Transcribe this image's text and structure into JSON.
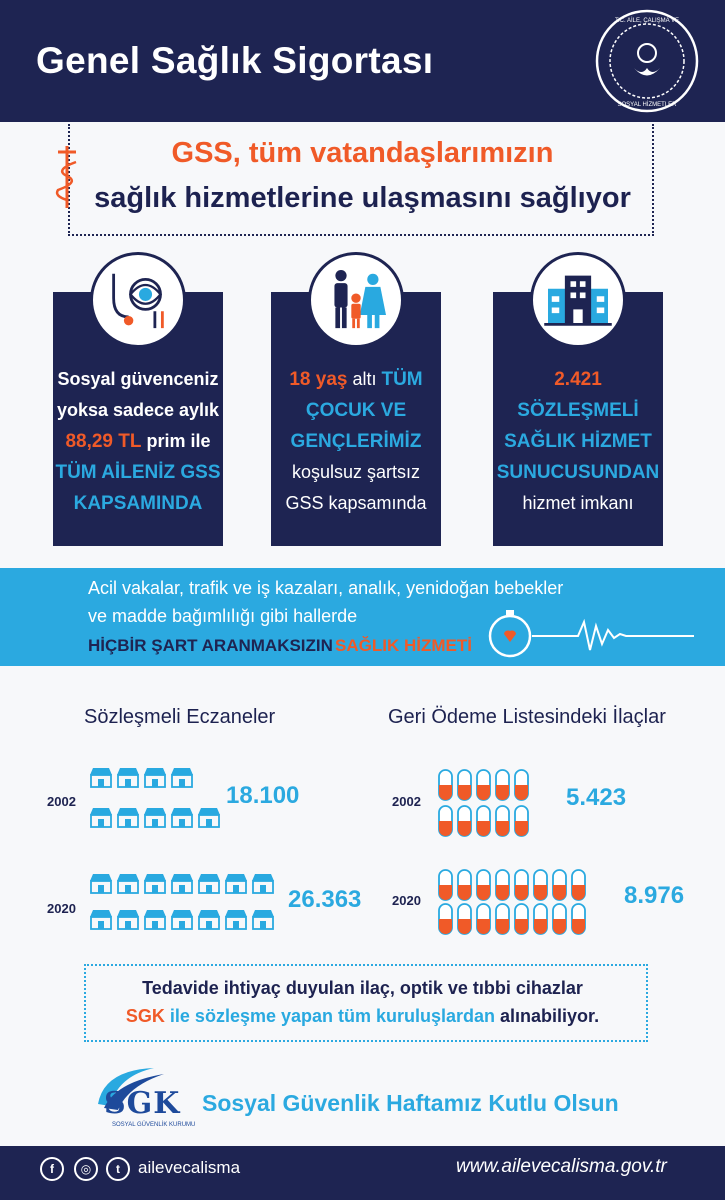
{
  "header": {
    "title": "Genel Sağlık Sigortası",
    "seal_text": "T.C. AİLE, ÇALIŞMA VE SOSYAL HİZMETLER BAKANLIĞI"
  },
  "subtitle": {
    "line1": "GSS, tüm vatandaşlarımızın",
    "line2": "sağlık hizmetlerine ulaşmasını sağlıyor"
  },
  "cards": [
    {
      "icon": "medical-tools-icon",
      "lines": [
        {
          "parts": [
            {
              "t": "Sosyal güvenceniz",
              "c": "white",
              "w": "bold"
            }
          ]
        },
        {
          "parts": [
            {
              "t": "yoksa sadece aylık",
              "c": "white",
              "w": "bold"
            }
          ]
        },
        {
          "parts": [
            {
              "t": "88,29 TL",
              "c": "orange",
              "w": "bold"
            },
            {
              "t": " prim ile",
              "c": "white",
              "w": "bold"
            }
          ]
        },
        {
          "parts": [
            {
              "t": "TÜM AİLENİZ GSS",
              "c": "blue",
              "w": "bold"
            }
          ]
        },
        {
          "parts": [
            {
              "t": "KAPSAMINDA",
              "c": "blue",
              "w": "bold"
            }
          ]
        }
      ]
    },
    {
      "icon": "family-icon",
      "lines": [
        {
          "parts": [
            {
              "t": "18 yaş",
              "c": "orange",
              "w": "bold"
            },
            {
              "t": " altı ",
              "c": "white",
              "w": "reg"
            },
            {
              "t": "TÜM",
              "c": "blue",
              "w": "bold"
            }
          ]
        },
        {
          "parts": [
            {
              "t": "ÇOCUK VE",
              "c": "blue",
              "w": "bold"
            }
          ]
        },
        {
          "parts": [
            {
              "t": "GENÇLERİMİZ",
              "c": "blue",
              "w": "bold"
            }
          ]
        },
        {
          "parts": [
            {
              "t": "koşulsuz şartsız",
              "c": "white",
              "w": "reg"
            }
          ]
        },
        {
          "parts": [
            {
              "t": "GSS kapsamında",
              "c": "white",
              "w": "reg"
            }
          ]
        }
      ]
    },
    {
      "icon": "hospital-icon",
      "lines": [
        {
          "parts": [
            {
              "t": "2.421",
              "c": "orange",
              "w": "bold"
            }
          ]
        },
        {
          "parts": [
            {
              "t": "SÖZLEŞMELİ",
              "c": "blue",
              "w": "bold"
            }
          ]
        },
        {
          "parts": [
            {
              "t": "SAĞLIK HİZMET",
              "c": "blue",
              "w": "bold"
            }
          ]
        },
        {
          "parts": [
            {
              "t": "SUNUCUSUNDAN",
              "c": "blue",
              "w": "bold"
            }
          ]
        },
        {
          "parts": [
            {
              "t": "hizmet imkanı",
              "c": "white",
              "w": "reg"
            }
          ]
        }
      ]
    }
  ],
  "banner": {
    "line1": "Acil vakalar, trafik ve iş kazaları, analık, yenidoğan bebekler",
    "line2": "ve madde bağımlılığı gibi hallerde",
    "line3_a": "HİÇBİR ŞART ARANMAKSIZIN",
    "line3_b": "SAĞLIK HİZMETİ"
  },
  "pharmacies": {
    "title": "Sözleşmeli Eczaneler",
    "rows": [
      {
        "year": "2002",
        "value": "18.100",
        "icons_row1": 4,
        "icons_row2": 5
      },
      {
        "year": "2020",
        "value": "26.363",
        "icons_row1": 7,
        "icons_row2": 7
      }
    ]
  },
  "drugs": {
    "title": "Geri Ödeme Listesindeki İlaçlar",
    "rows": [
      {
        "year": "2002",
        "value": "5.423",
        "icons_row1": 5,
        "icons_row2": 5
      },
      {
        "year": "2020",
        "value": "8.976",
        "icons_row1": 8,
        "icons_row2": 8
      }
    ]
  },
  "bottom": {
    "line1": "Tedavide ihtiyaç duyulan ilaç, optik ve tıbbi cihazlar",
    "line2_a": "SGK",
    "line2_b": " ile sözleşme yapan tüm kuruluşlardan",
    "line2_c": " alınabiliyor."
  },
  "sgk": {
    "logo_text": "SGK",
    "logo_sub": "SOSYAL GÜVENLİK KURUMU",
    "motto": "Sosyal Güvenlik Haftamız Kutlu Olsun"
  },
  "footer": {
    "facebook": "f",
    "instagram": "◎",
    "twitter": "t",
    "handle": "ailevecalisma",
    "url": "www.ailevecalisma.gov.tr"
  },
  "colors": {
    "navy": "#1e2452",
    "blue": "#2ba9e0",
    "orange": "#f05a28"
  }
}
